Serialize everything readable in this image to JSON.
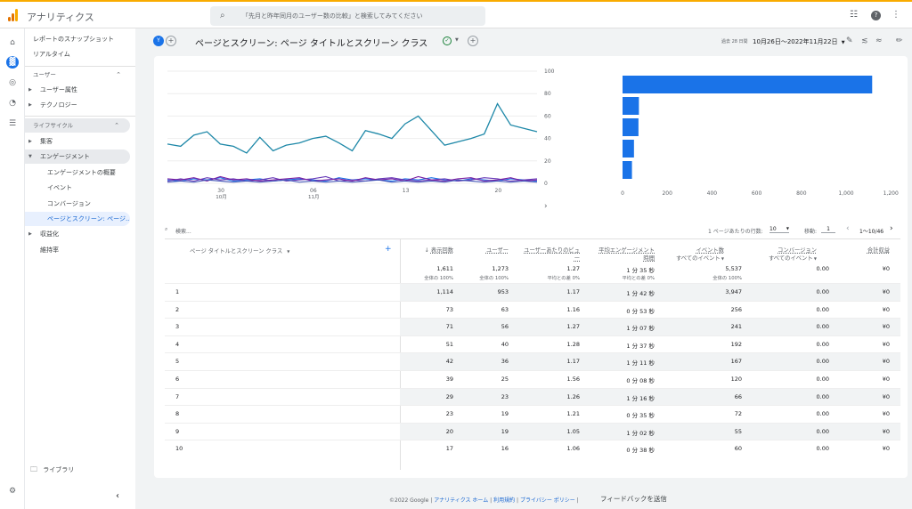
{
  "app": {
    "title": "アナリティクス",
    "search_placeholder": "「先月と昨年同月のユーザー数の比較」と検索してみてください",
    "logo_colors": [
      "#f9ab00",
      "#e37400",
      "#e37400"
    ]
  },
  "sidebar": {
    "top_items": [
      {
        "label": "レポートのスナップショット"
      },
      {
        "label": "リアルタイム"
      }
    ],
    "section_user": "ユーザー",
    "user_items": [
      {
        "label": "ユーザー属性"
      },
      {
        "label": "テクノロジー"
      }
    ],
    "section_lifecycle": "ライフサイクル",
    "lifecycle_items": [
      {
        "label": "集客"
      },
      {
        "label": "エンゲージメント"
      },
      {
        "label": "エンゲージメントの概要"
      },
      {
        "label": "イベント"
      },
      {
        "label": "コンバージョン"
      },
      {
        "label": "ページとスクリーン: ページ..."
      },
      {
        "label": "収益化"
      },
      {
        "label": "維持率"
      }
    ],
    "library": "ライブラリ"
  },
  "header": {
    "badge": "Y",
    "title": "ページとスクリーン: ページ タイトルとスクリーン クラス",
    "date_label": "過去 28 日間",
    "date_range": "10月26日～2022年11月22日"
  },
  "line_chart": {
    "x_ticks": [
      "30",
      "06",
      "13",
      "20"
    ],
    "x_months": [
      "10月",
      "11月"
    ],
    "y_ticks": [
      "100",
      "80",
      "60",
      "40",
      "20",
      "0"
    ],
    "series_main": [
      35,
      33,
      43,
      46,
      35,
      33,
      27,
      41,
      29,
      34,
      36,
      40,
      42,
      36,
      29,
      47,
      44,
      40,
      53,
      60,
      47,
      34,
      37,
      40,
      44,
      71,
      52,
      49,
      46
    ],
    "series_colors": [
      "#1e88a8",
      "#1a73e8",
      "#673ab7",
      "#7b1fa2",
      "#3f51b5"
    ]
  },
  "bar_chart": {
    "x_ticks": [
      "0",
      "200",
      "400",
      "600",
      "800",
      "1,000",
      "1,200"
    ],
    "values": [
      1114,
      73,
      71,
      51,
      42
    ]
  },
  "table": {
    "search_placeholder": "検索...",
    "rows_per_page_label": "1 ページあたりの行数:",
    "rows_per_page": "10",
    "goto_label": "移動:",
    "goto_value": "1",
    "pagination": "1～10/46",
    "dim_header": "ページ タイトルとスクリーン クラス",
    "col_headers": [
      "表示回数",
      "ユーザー",
      "ユーザーあたりのビュー",
      "平均エンゲージメント時間",
      "イベント数",
      "コンバージョン",
      "合計収益"
    ],
    "col_sub": [
      "すべてのイベント",
      "すべてのイベント"
    ],
    "totals": [
      {
        "v": "1,611",
        "s": "全体の 100%"
      },
      {
        "v": "1,273",
        "s": "全体の 100%"
      },
      {
        "v": "1.27",
        "s": "平均との差 0%"
      },
      {
        "v": "1 分 35 秒",
        "s": "平均との差 0%"
      },
      {
        "v": "5,537",
        "s": "全体の 100%"
      },
      {
        "v": "0.00",
        "s": ""
      },
      {
        "v": "¥0",
        "s": ""
      }
    ],
    "rows": [
      [
        "1",
        "1,114",
        "953",
        "1.17",
        "1 分 42 秒",
        "3,947",
        "0.00",
        "¥0"
      ],
      [
        "2",
        "73",
        "63",
        "1.16",
        "0 分 53 秒",
        "256",
        "0.00",
        "¥0"
      ],
      [
        "3",
        "71",
        "56",
        "1.27",
        "1 分 07 秒",
        "241",
        "0.00",
        "¥0"
      ],
      [
        "4",
        "51",
        "40",
        "1.28",
        "1 分 37 秒",
        "192",
        "0.00",
        "¥0"
      ],
      [
        "5",
        "42",
        "36",
        "1.17",
        "1 分 11 秒",
        "167",
        "0.00",
        "¥0"
      ],
      [
        "6",
        "39",
        "25",
        "1.56",
        "0 分 08 秒",
        "120",
        "0.00",
        "¥0"
      ],
      [
        "7",
        "29",
        "23",
        "1.26",
        "1 分 16 秒",
        "66",
        "0.00",
        "¥0"
      ],
      [
        "8",
        "23",
        "19",
        "1.21",
        "0 分 35 秒",
        "72",
        "0.00",
        "¥0"
      ],
      [
        "9",
        "20",
        "19",
        "1.05",
        "1 分 02 秒",
        "55",
        "0.00",
        "¥0"
      ],
      [
        "10",
        "17",
        "16",
        "1.06",
        "0 分 38 秒",
        "60",
        "0.00",
        "¥0"
      ]
    ]
  },
  "footer": {
    "copyright": "©2022 Google",
    "links": [
      "アナリティクス ホーム",
      "利用規約",
      "プライバシー ポリシー"
    ],
    "feedback": "フィードバックを送信"
  }
}
